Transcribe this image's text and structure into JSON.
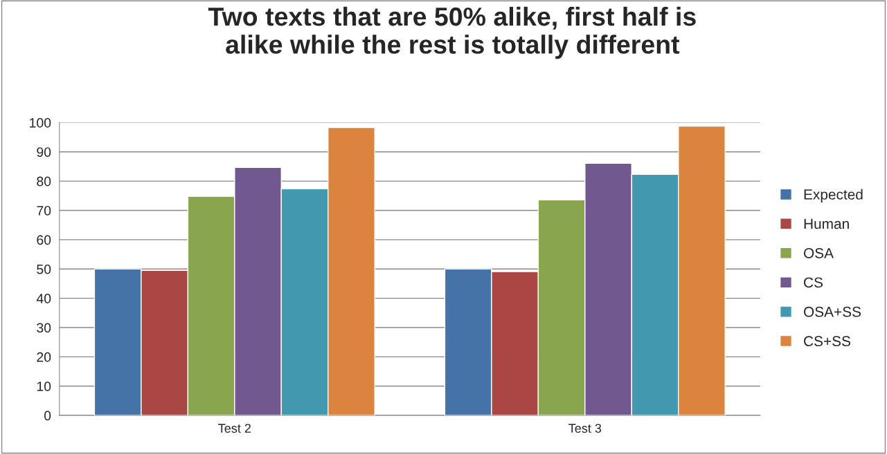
{
  "chart_data": {
    "type": "bar",
    "title": "Two texts that are 50% alike, first half is\nalike while the rest is totally different",
    "categories": [
      "Test 2",
      "Test 3"
    ],
    "series": [
      {
        "name": "Expected",
        "color": "#4572a7",
        "values": [
          50,
          50
        ]
      },
      {
        "name": "Human",
        "color": "#aa4643",
        "values": [
          49.5,
          49.1
        ]
      },
      {
        "name": "OSA",
        "color": "#89a54e",
        "values": [
          74.8,
          73.6
        ]
      },
      {
        "name": "CS",
        "color": "#71588f",
        "values": [
          84.7,
          86.1
        ]
      },
      {
        "name": "OSA+SS",
        "color": "#4198af",
        "values": [
          77.4,
          82.3
        ]
      },
      {
        "name": "CS+SS",
        "color": "#db843d",
        "values": [
          98.3,
          98.8
        ]
      }
    ],
    "ylim": [
      0,
      100
    ],
    "yticks": [
      0,
      10,
      20,
      30,
      40,
      50,
      60,
      70,
      80,
      90,
      100
    ],
    "grid": "y",
    "legend": "right"
  }
}
